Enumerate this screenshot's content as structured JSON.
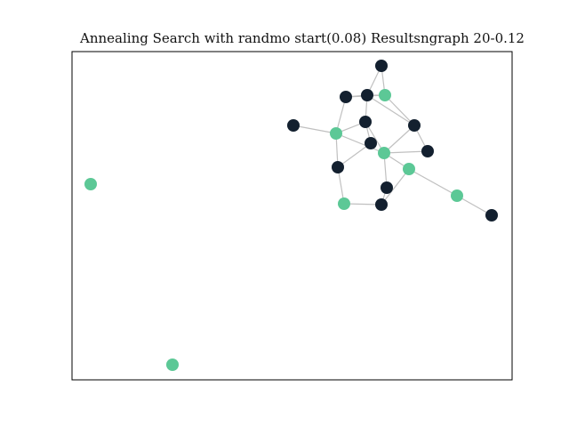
{
  "title": "Annealing Search with randmo start(0.08) Resultsngraph 20-0.12",
  "colors": {
    "node_selected": "#5cc896",
    "node_unselected": "#13202f",
    "edge": "#c0c0c0",
    "frame": "#000000"
  },
  "graph": {
    "nodes": [
      {
        "id": "n0",
        "selected": false
      },
      {
        "id": "n1",
        "selected": true
      },
      {
        "id": "n2",
        "selected": false
      },
      {
        "id": "n3",
        "selected": false
      },
      {
        "id": "n4",
        "selected": false
      },
      {
        "id": "n5",
        "selected": true
      },
      {
        "id": "n6",
        "selected": false
      },
      {
        "id": "n7",
        "selected": false
      },
      {
        "id": "n8",
        "selected": false
      },
      {
        "id": "n9",
        "selected": true
      },
      {
        "id": "n10",
        "selected": false
      },
      {
        "id": "n11",
        "selected": true
      },
      {
        "id": "n12",
        "selected": false
      },
      {
        "id": "n13",
        "selected": false
      },
      {
        "id": "n14",
        "selected": true
      },
      {
        "id": "n15",
        "selected": false
      },
      {
        "id": "n16",
        "selected": true
      },
      {
        "id": "n17",
        "selected": false
      },
      {
        "id": "n18",
        "selected": true
      },
      {
        "id": "n19",
        "selected": true
      }
    ],
    "edges": [
      [
        "n0",
        "n2"
      ],
      [
        "n1",
        "n2"
      ],
      [
        "n1",
        "n3"
      ],
      [
        "n1",
        "n4"
      ],
      [
        "n3",
        "n1"
      ],
      [
        "n2",
        "n6"
      ],
      [
        "n4",
        "n5"
      ],
      [
        "n6",
        "n5"
      ],
      [
        "n5",
        "n7"
      ],
      [
        "n5",
        "n8"
      ],
      [
        "n4",
        "n7"
      ],
      [
        "n4",
        "n9"
      ],
      [
        "n7",
        "n9"
      ],
      [
        "n6",
        "n11"
      ],
      [
        "n9",
        "n10"
      ],
      [
        "n8",
        "n10"
      ],
      [
        "n11",
        "n13"
      ],
      [
        "n12",
        "n11"
      ],
      [
        "n9",
        "n12"
      ],
      [
        "n11",
        "n14"
      ],
      [
        "n11",
        "n15"
      ],
      [
        "n14",
        "n15"
      ],
      [
        "n10",
        "n14"
      ]
    ]
  }
}
